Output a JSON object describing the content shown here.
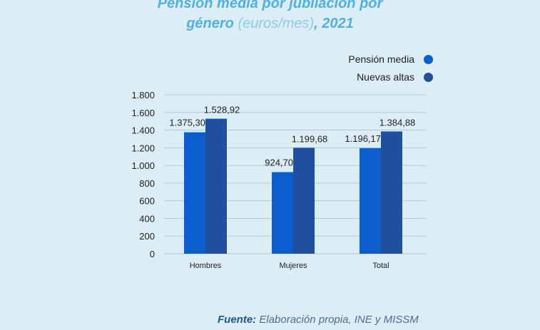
{
  "chart_data": {
    "type": "bar",
    "title_line1": "Pensión media por jubilación por",
    "title_line2_bold": "género",
    "title_line2_light": "(euros/mes)",
    "title_line2_year": ", 2021",
    "categories": [
      "Hombres",
      "Mujeres",
      "Total"
    ],
    "series": [
      {
        "name": "Pensión media",
        "color": "#0b5fcc",
        "values": [
          1375.3,
          924.7,
          1196.17
        ],
        "labels": [
          "1.375,30",
          "924,70",
          "1.196,17"
        ]
      },
      {
        "name": "Nuevas altas",
        "color": "#1f4f9e",
        "values": [
          1528.92,
          1199.68,
          1384.88
        ],
        "labels": [
          "1.528,92",
          "1.199,68",
          "1.384,88"
        ]
      }
    ],
    "yticks": [
      0,
      200,
      400,
      600,
      800,
      1000,
      1200,
      1400,
      1600,
      1800
    ],
    "ytick_labels": [
      "0",
      "200",
      "400",
      "600",
      "800",
      "1.000",
      "1.200",
      "1.400",
      "1.600",
      "1.800"
    ],
    "ylim": [
      0,
      1800
    ],
    "grid": true,
    "legend_position": "top-right",
    "xlabel": "",
    "ylabel": ""
  },
  "source": {
    "label": "Fuente:",
    "text": "Elaboración propia, INE y MISSM"
  }
}
